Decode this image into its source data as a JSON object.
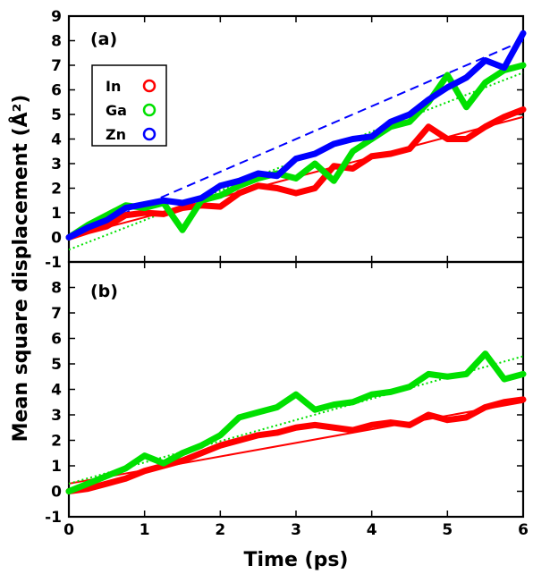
{
  "chart_data": {
    "type": "line",
    "xlabel": "Time (ps)",
    "ylabel": "Mean square displacement (Å²)",
    "xlim": [
      0,
      6
    ],
    "x_ticks": [
      0,
      1,
      2,
      3,
      4,
      5,
      6
    ],
    "colors": {
      "In": "#ff0000",
      "Ga": "#00e000",
      "Zn": "#0000ff"
    },
    "legend": {
      "placement": "upper-left of panel (a)",
      "entries": [
        "In",
        "Ga",
        "Zn"
      ]
    },
    "panels": [
      {
        "id": "a",
        "label": "(a)",
        "ylim": [
          -1,
          9
        ],
        "y_ticks": [
          -1,
          0,
          1,
          2,
          3,
          4,
          5,
          6,
          7,
          8,
          9
        ],
        "series": [
          {
            "name": "In",
            "x": [
              0,
              0.25,
              0.5,
              0.75,
              1.0,
              1.25,
              1.5,
              1.75,
              2.0,
              2.25,
              2.5,
              2.75,
              3.0,
              3.25,
              3.5,
              3.75,
              4.0,
              4.25,
              4.5,
              4.75,
              5.0,
              5.25,
              5.5,
              5.75,
              6.0
            ],
            "y": [
              0,
              0.25,
              0.45,
              0.9,
              1.0,
              0.95,
              1.2,
              1.3,
              1.25,
              1.8,
              2.1,
              2.0,
              1.8,
              2.0,
              2.9,
              2.8,
              3.3,
              3.4,
              3.6,
              4.5,
              4.0,
              4.0,
              4.5,
              4.9,
              5.2
            ],
            "fit": {
              "style": "solid",
              "y0": 0.0,
              "y6": 4.9
            }
          },
          {
            "name": "Ga",
            "x": [
              0,
              0.25,
              0.5,
              0.75,
              1.0,
              1.25,
              1.5,
              1.75,
              2.0,
              2.25,
              2.5,
              2.75,
              3.0,
              3.25,
              3.5,
              3.75,
              4.0,
              4.25,
              4.5,
              4.75,
              5.0,
              5.25,
              5.5,
              5.75,
              6.0
            ],
            "y": [
              0,
              0.5,
              0.9,
              1.3,
              1.2,
              1.4,
              0.3,
              1.5,
              1.7,
              2.1,
              2.4,
              2.6,
              2.4,
              3.0,
              2.3,
              3.5,
              4.0,
              4.5,
              4.7,
              5.5,
              6.6,
              5.3,
              6.3,
              6.8,
              7.0
            ],
            "fit": {
              "style": "dotted",
              "y0": -0.5,
              "y6": 6.7
            }
          },
          {
            "name": "Zn",
            "x": [
              0,
              0.25,
              0.5,
              0.75,
              1.0,
              1.25,
              1.5,
              1.75,
              2.0,
              2.25,
              2.5,
              2.75,
              3.0,
              3.25,
              3.5,
              3.75,
              4.0,
              4.25,
              4.5,
              4.75,
              5.0,
              5.25,
              5.5,
              5.75,
              6.0
            ],
            "y": [
              0,
              0.4,
              0.7,
              1.2,
              1.35,
              1.5,
              1.4,
              1.6,
              2.1,
              2.3,
              2.6,
              2.5,
              3.2,
              3.4,
              3.8,
              4.0,
              4.1,
              4.7,
              5.0,
              5.6,
              6.1,
              6.5,
              7.2,
              6.9,
              8.3
            ],
            "fit": {
              "style": "dashed",
              "y0": 0.0,
              "y6": 8.0
            }
          }
        ]
      },
      {
        "id": "b",
        "label": "(b)",
        "ylim": [
          -1,
          9
        ],
        "y_ticks": [
          -1,
          0,
          1,
          2,
          3,
          4,
          5,
          6,
          7,
          8
        ],
        "series": [
          {
            "name": "In",
            "x": [
              0,
              0.25,
              0.5,
              0.75,
              1.0,
              1.25,
              1.5,
              1.75,
              2.0,
              2.25,
              2.5,
              2.75,
              3.0,
              3.25,
              3.5,
              3.75,
              4.0,
              4.25,
              4.5,
              4.75,
              5.0,
              5.25,
              5.5,
              5.75,
              6.0
            ],
            "y": [
              0,
              0.1,
              0.3,
              0.5,
              0.8,
              1.0,
              1.2,
              1.5,
              1.8,
              2.0,
              2.2,
              2.3,
              2.5,
              2.6,
              2.5,
              2.4,
              2.6,
              2.7,
              2.6,
              3.0,
              2.8,
              2.9,
              3.3,
              3.5,
              3.6
            ],
            "fit": {
              "style": "solid",
              "y0": 0.3,
              "y6": 3.5
            }
          },
          {
            "name": "Ga",
            "x": [
              0,
              0.25,
              0.5,
              0.75,
              1.0,
              1.25,
              1.5,
              1.75,
              2.0,
              2.25,
              2.5,
              2.75,
              3.0,
              3.25,
              3.5,
              3.75,
              4.0,
              4.25,
              4.5,
              4.75,
              5.0,
              5.25,
              5.5,
              5.75,
              6.0
            ],
            "y": [
              0,
              0.3,
              0.6,
              0.9,
              1.4,
              1.1,
              1.5,
              1.8,
              2.2,
              2.9,
              3.1,
              3.3,
              3.8,
              3.2,
              3.4,
              3.5,
              3.8,
              3.9,
              4.1,
              4.6,
              4.5,
              4.6,
              5.4,
              4.4,
              4.6
            ],
            "fit": {
              "style": "dotted",
              "y0": 0.3,
              "y6": 5.3
            }
          }
        ]
      }
    ]
  }
}
